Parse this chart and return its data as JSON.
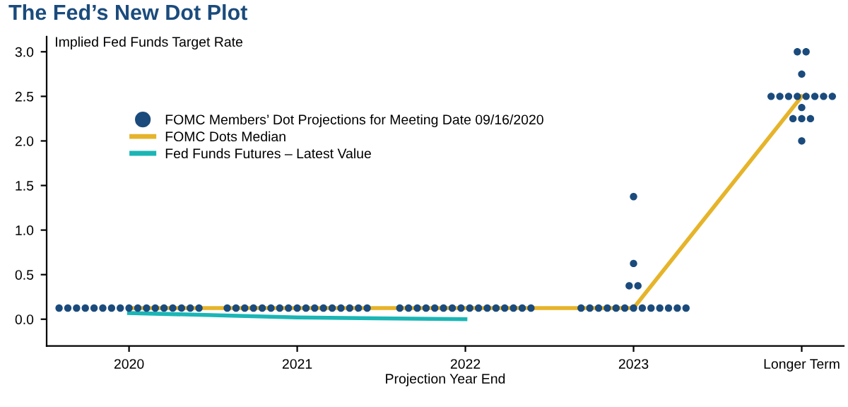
{
  "chart_data": {
    "type": "scatter",
    "title": "The Fed’s New Dot Plot",
    "ylabel": "Implied Fed Funds Target Rate",
    "xlabel": "Projection Year End",
    "categories": [
      "2020",
      "2021",
      "2022",
      "2023",
      "Longer Term"
    ],
    "ylim": [
      -0.3,
      3.17
    ],
    "yticks": [
      {
        "value": 0,
        "label": "0.0"
      },
      {
        "value": 0.5,
        "label": "0.5"
      },
      {
        "value": 1,
        "label": "1.0"
      },
      {
        "value": 1.5,
        "label": "1.5"
      },
      {
        "value": 2,
        "label": "2.0"
      },
      {
        "value": 2.5,
        "label": "2.5"
      },
      {
        "value": 3,
        "label": "3.0"
      }
    ],
    "grid": false,
    "legend": "top left",
    "series": [
      {
        "name": "FOMC Members’ Dot Projections for Meeting Date 09/16/2020",
        "marker": "circle",
        "color": "#1b4b7c",
        "values": [
          0.125,
          0.125,
          0.125,
          0.125,
          2.5
        ]
      },
      {
        "marker": "circle",
        "color": "#1b4b7c",
        "values": [
          0.125,
          0.125,
          0.125,
          0.125,
          2.5
        ]
      },
      {
        "marker": "circle",
        "color": "#1b4b7c",
        "values": [
          0.125,
          0.125,
          0.125,
          0.125,
          2.5
        ]
      },
      {
        "marker": "circle",
        "color": "#1b4b7c",
        "values": [
          0.125,
          0.125,
          0.125,
          0.125,
          2.5
        ]
      },
      {
        "marker": "circle",
        "color": "#1b4b7c",
        "values": [
          0.125,
          0.125,
          0.125,
          0.125,
          2.5
        ]
      },
      {
        "marker": "circle",
        "color": "#1b4b7c",
        "values": [
          0.125,
          0.125,
          0.125,
          0.125,
          2.5
        ]
      },
      {
        "marker": "circle",
        "color": "#1b4b7c",
        "values": [
          0.125,
          0.125,
          0.125,
          0.125,
          2.5
        ]
      },
      {
        "marker": "circle",
        "color": "#1b4b7c",
        "values": [
          0.125,
          0.125,
          0.125,
          0.125,
          2.5
        ]
      },
      {
        "marker": "circle",
        "color": "#1b4b7c",
        "values": [
          0.125,
          0.125,
          0.125,
          0.125,
          3.0
        ]
      },
      {
        "marker": "circle",
        "color": "#1b4b7c",
        "values": [
          0.125,
          0.125,
          0.125,
          0.125,
          3.0
        ]
      },
      {
        "marker": "circle",
        "color": "#1b4b7c",
        "values": [
          0.125,
          0.125,
          0.125,
          0.125,
          2.75
        ]
      },
      {
        "marker": "circle",
        "color": "#1b4b7c",
        "values": [
          0.125,
          0.125,
          0.125,
          0.125,
          2.375
        ]
      },
      {
        "marker": "circle",
        "color": "#1b4b7c",
        "values": [
          0.125,
          0.125,
          0.125,
          0.125,
          2.25
        ]
      },
      {
        "marker": "circle",
        "color": "#1b4b7c",
        "values": [
          0.125,
          0.125,
          0.125,
          0.375,
          2.25
        ]
      },
      {
        "marker": "circle",
        "color": "#1b4b7c",
        "values": [
          0.125,
          0.125,
          0.125,
          0.375,
          2.25
        ]
      },
      {
        "marker": "circle",
        "color": "#1b4b7c",
        "values": [
          0.125,
          0.125,
          0.125,
          0.625,
          2.0
        ]
      },
      {
        "marker": "circle",
        "color": "#1b4b7c",
        "values": [
          0.125,
          0.125,
          null,
          1.375,
          null
        ]
      },
      {
        "name": "FOMC Dots Median",
        "type": "line",
        "marker": "none",
        "line_style": "solid",
        "color": "#e6b42a",
        "values": [
          0.125,
          0.125,
          0.125,
          0.125,
          2.5
        ]
      },
      {
        "name": "Fed Funds Futures – Latest Value",
        "type": "line",
        "marker": "none",
        "line_style": "solid",
        "color": "#1bb5b5",
        "values": [
          0.07,
          0.02,
          0.0,
          null,
          null
        ]
      }
    ]
  }
}
